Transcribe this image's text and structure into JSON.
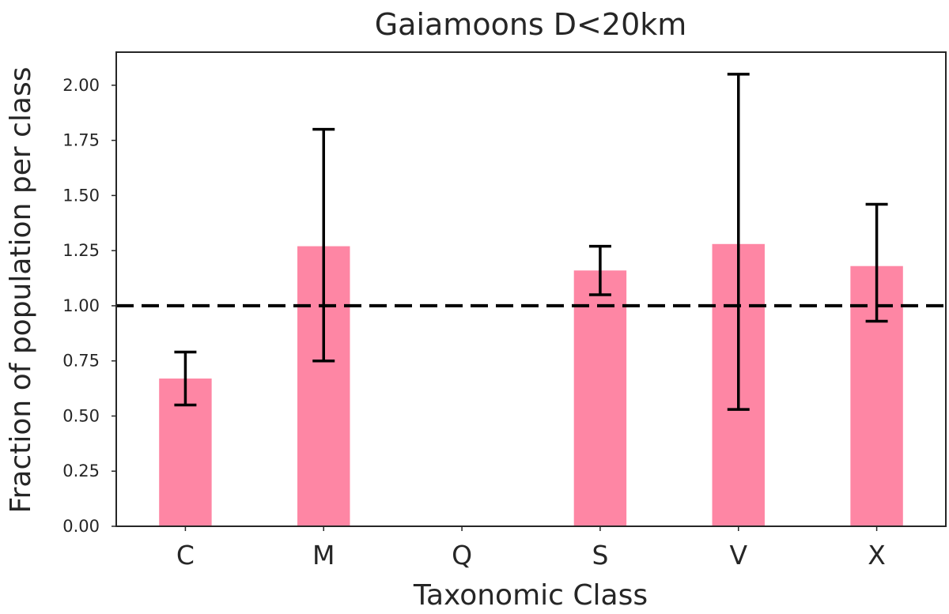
{
  "chart_data": {
    "type": "bar",
    "title": "Gaiamoons D<20km",
    "xlabel": "Taxonomic Class",
    "ylabel": "Fraction of population per class",
    "categories": [
      "C",
      "M",
      "Q",
      "S",
      "V",
      "X"
    ],
    "values": [
      0.67,
      1.27,
      0,
      1.16,
      1.28,
      1.18
    ],
    "error_low": [
      0.55,
      0.75,
      null,
      1.05,
      0.53,
      0.93
    ],
    "error_high": [
      0.79,
      1.8,
      null,
      1.27,
      2.05,
      1.46
    ],
    "ylim": [
      0,
      2.15
    ],
    "yticks": [
      0.0,
      0.25,
      0.5,
      0.75,
      1.0,
      1.25,
      1.5,
      1.75,
      2.0
    ],
    "ytick_labels": [
      "0.00",
      "0.25",
      "0.50",
      "0.75",
      "1.00",
      "1.25",
      "1.50",
      "1.75",
      "2.00"
    ],
    "reference_line": 1.0,
    "bar_color": "#fe86a4",
    "error_color": "#000000",
    "reference_line_color": "#000000",
    "grid": false,
    "legend": false
  }
}
